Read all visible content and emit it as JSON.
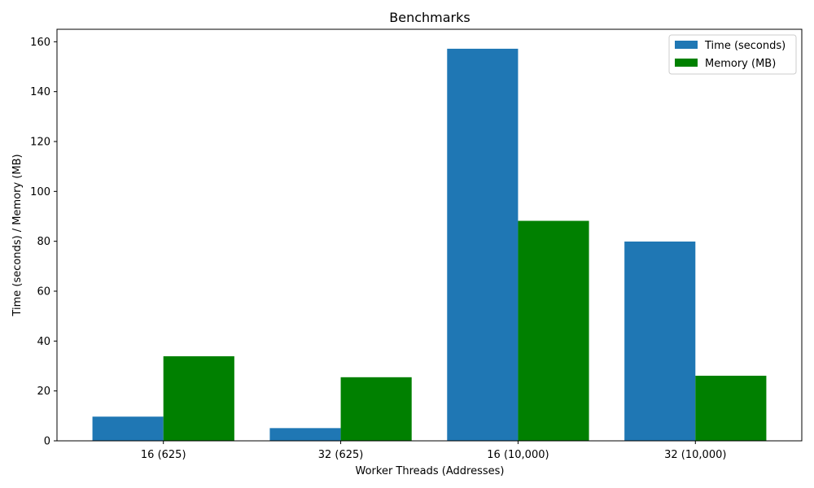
{
  "chart_data": {
    "type": "bar",
    "title": "Benchmarks",
    "xlabel": "Worker Threads (Addresses)",
    "ylabel": "Time (seconds) / Memory (MB)",
    "categories": [
      "16 (625)",
      "32 (625)",
      "16 (10,000)",
      "32 (10,000)"
    ],
    "series": [
      {
        "name": "Time (seconds)",
        "color": "#1f77b4",
        "values": [
          9.7,
          5.1,
          157.2,
          79.9
        ]
      },
      {
        "name": "Memory (MB)",
        "color": "#008000",
        "values": [
          33.9,
          25.5,
          88.2,
          26.1
        ]
      }
    ],
    "ylim": [
      0,
      165
    ],
    "yticks": [
      0,
      20,
      40,
      60,
      80,
      100,
      120,
      140,
      160
    ],
    "grid": false,
    "legend_position": "top-right"
  }
}
